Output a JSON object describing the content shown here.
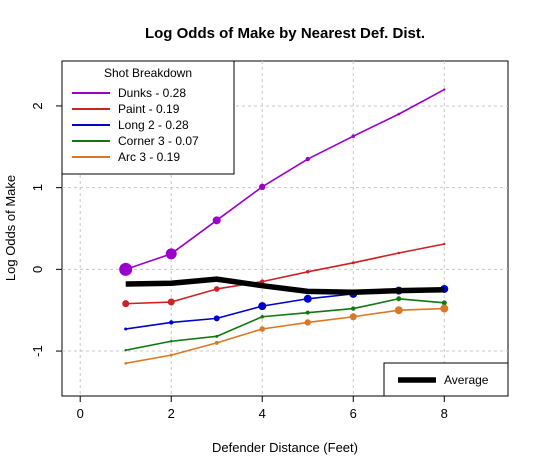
{
  "chart_data": {
    "type": "line",
    "title": "Log Odds of Make by Nearest Def. Dist.",
    "xlabel": "Defender Distance (Feet)",
    "ylabel": "Log Odds of Make",
    "xlim": [
      -0.4,
      9.4
    ],
    "ylim": [
      -1.55,
      2.55
    ],
    "x_ticks": [
      0,
      2,
      4,
      6,
      8
    ],
    "y_ticks": [
      -1,
      0,
      1,
      2
    ],
    "grid": true,
    "x": [
      1,
      2,
      3,
      4,
      5,
      6,
      7,
      8
    ],
    "legend_title": "Shot Breakdown",
    "legend_position": "top-left",
    "series": [
      {
        "name": "Dunks - 0.28",
        "color": "#9900cc",
        "values": [
          0.0,
          0.19,
          0.6,
          1.01,
          1.35,
          1.63,
          1.9,
          2.2
        ],
        "point_sizes": [
          6.5,
          5.5,
          4.0,
          3.2,
          2.2,
          1.8,
          1.4,
          1.2
        ]
      },
      {
        "name": "Paint - 0.19",
        "color": "#cc2222",
        "values": [
          -0.42,
          -0.4,
          -0.24,
          -0.15,
          -0.03,
          0.08,
          0.2,
          0.31
        ],
        "point_sizes": [
          3.5,
          3.5,
          2.8,
          2.2,
          1.8,
          1.5,
          1.3,
          1.2
        ]
      },
      {
        "name": "Long 2 - 0.28",
        "color": "#0000cc",
        "values": [
          -0.73,
          -0.65,
          -0.6,
          -0.45,
          -0.36,
          -0.3,
          -0.26,
          -0.24
        ],
        "point_sizes": [
          1.5,
          2.2,
          3.0,
          4.0,
          4.0,
          4.0,
          4.0,
          4.0
        ]
      },
      {
        "name": "Corner 3 - 0.07",
        "color": "#117711",
        "values": [
          -0.99,
          -0.88,
          -0.82,
          -0.58,
          -0.53,
          -0.48,
          -0.36,
          -0.41
        ],
        "point_sizes": [
          1.2,
          1.3,
          1.5,
          1.8,
          2.0,
          2.2,
          2.5,
          2.5
        ]
      },
      {
        "name": "Arc 3 - 0.19",
        "color": "#dd7722",
        "values": [
          -1.15,
          -1.05,
          -0.9,
          -0.73,
          -0.65,
          -0.58,
          -0.5,
          -0.48
        ],
        "point_sizes": [
          1.3,
          1.5,
          2.0,
          2.8,
          3.2,
          3.5,
          4.0,
          4.0
        ]
      },
      {
        "name": "Average",
        "color": "#000000",
        "values": [
          -0.18,
          -0.17,
          -0.12,
          -0.2,
          -0.27,
          -0.28,
          -0.26,
          -0.25
        ]
      }
    ],
    "average_legend_position": "bottom-right"
  }
}
